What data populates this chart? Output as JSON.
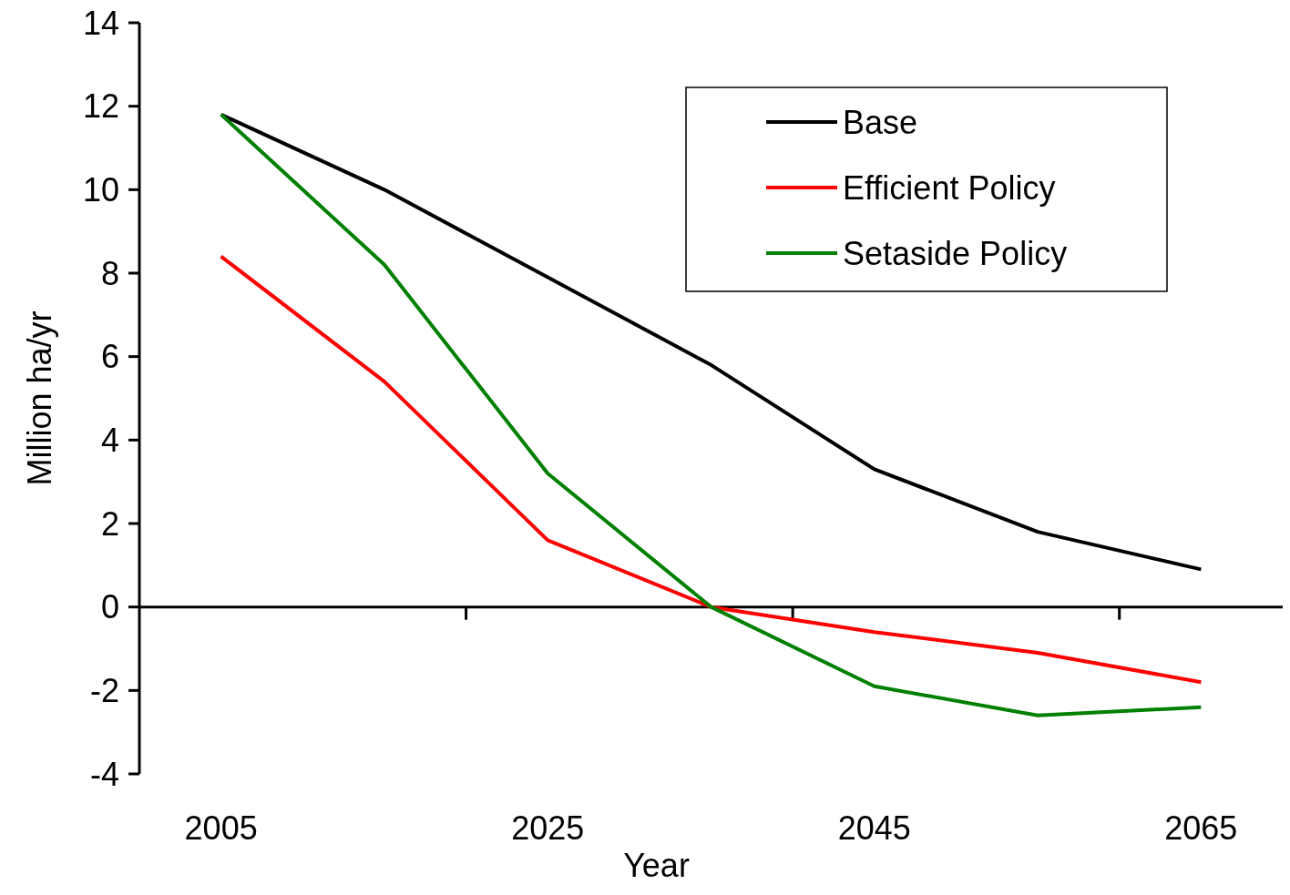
{
  "chart_data": {
    "type": "line",
    "xlabel": "Year",
    "ylabel": "Million ha/yr",
    "x": [
      2005,
      2015,
      2025,
      2035,
      2045,
      2055,
      2065
    ],
    "xlim": [
      2000,
      2070
    ],
    "xticks": [
      2005,
      2025,
      2045,
      2065,
      {
        "value": 2020,
        "label": null
      },
      {
        "value": 2040,
        "label": null
      },
      {
        "value": 2060,
        "label": null
      }
    ],
    "ylim": [
      -4,
      14
    ],
    "yticks": [
      -4,
      -2,
      0,
      2,
      4,
      6,
      8,
      10,
      12,
      14
    ],
    "series": [
      {
        "name": "Base",
        "color": "#000000",
        "values": [
          11.8,
          10.0,
          7.9,
          5.8,
          3.3,
          1.8,
          0.9
        ]
      },
      {
        "name": "Efficient Policy",
        "color": "#ff0000",
        "values": [
          8.4,
          5.4,
          1.6,
          0.0,
          -0.6,
          -1.1,
          -1.8
        ]
      },
      {
        "name": "Setaside Policy",
        "color": "#008000",
        "values": [
          11.8,
          8.2,
          3.2,
          0.0,
          -1.9,
          -2.6,
          -2.4
        ]
      }
    ],
    "legend": "top right",
    "marker": "none",
    "line_style": "solid"
  }
}
